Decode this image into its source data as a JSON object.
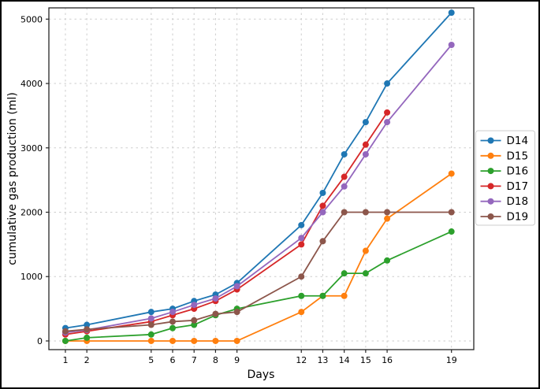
{
  "figure": {
    "background": "#ffffff",
    "frame_border_color": "#000000",
    "plot_border_color": "#262626",
    "grid_color": "#cdcdcd",
    "legend_border_color": "#cccccc"
  },
  "chart_data": {
    "type": "line",
    "title": "",
    "xlabel": "Days",
    "ylabel": "cumulative gas production (ml)",
    "x_ticks": [
      1,
      2,
      5,
      6,
      7,
      8,
      9,
      12,
      13,
      14,
      15,
      16,
      19
    ],
    "y_ticks": [
      0,
      1000,
      2000,
      3000,
      4000,
      5000
    ],
    "xlim": [
      0.23,
      20.04
    ],
    "ylim": [
      -135,
      5175
    ],
    "grid": "dashed-both-axes",
    "legend_position": "outside-right-center",
    "marker": "circle",
    "series": [
      {
        "name": "D14",
        "color": "#1f77b4",
        "x": [
          1,
          2,
          5,
          6,
          7,
          8,
          9,
          12,
          13,
          14,
          15,
          16,
          19
        ],
        "y": [
          200,
          250,
          450,
          500,
          620,
          720,
          900,
          1800,
          2300,
          2900,
          3400,
          4000,
          5100
        ]
      },
      {
        "name": "D15",
        "color": "#ff7f0e",
        "x": [
          1,
          2,
          5,
          6,
          7,
          8,
          9,
          12,
          13,
          14,
          15,
          16,
          19
        ],
        "y": [
          0,
          0,
          0,
          0,
          0,
          0,
          0,
          450,
          700,
          700,
          1400,
          1900,
          2600
        ]
      },
      {
        "name": "D16",
        "color": "#2ca02c",
        "x": [
          1,
          2,
          5,
          6,
          7,
          8,
          9,
          12,
          13,
          14,
          15,
          16,
          19
        ],
        "y": [
          0,
          50,
          100,
          200,
          250,
          400,
          500,
          700,
          700,
          1050,
          1050,
          1250,
          1700
        ]
      },
      {
        "name": "D17",
        "color": "#d62728",
        "x": [
          1,
          2,
          5,
          6,
          7,
          8,
          9,
          12,
          13,
          14,
          15,
          16
        ],
        "y": [
          100,
          150,
          300,
          400,
          500,
          620,
          800,
          1500,
          2100,
          2550,
          3050,
          3550
        ]
      },
      {
        "name": "D18",
        "color": "#9467bd",
        "x": [
          1,
          2,
          5,
          6,
          7,
          8,
          9,
          12,
          13,
          14,
          15,
          16,
          19
        ],
        "y": [
          130,
          170,
          350,
          450,
          560,
          660,
          850,
          1600,
          2000,
          2400,
          2900,
          3400,
          4600
        ]
      },
      {
        "name": "D19",
        "color": "#8c564b",
        "x": [
          1,
          2,
          5,
          6,
          7,
          8,
          9,
          12,
          13,
          14,
          15,
          16,
          19
        ],
        "y": [
          150,
          180,
          250,
          300,
          320,
          420,
          450,
          1000,
          1550,
          2000,
          2000,
          2000,
          2000
        ]
      }
    ]
  }
}
